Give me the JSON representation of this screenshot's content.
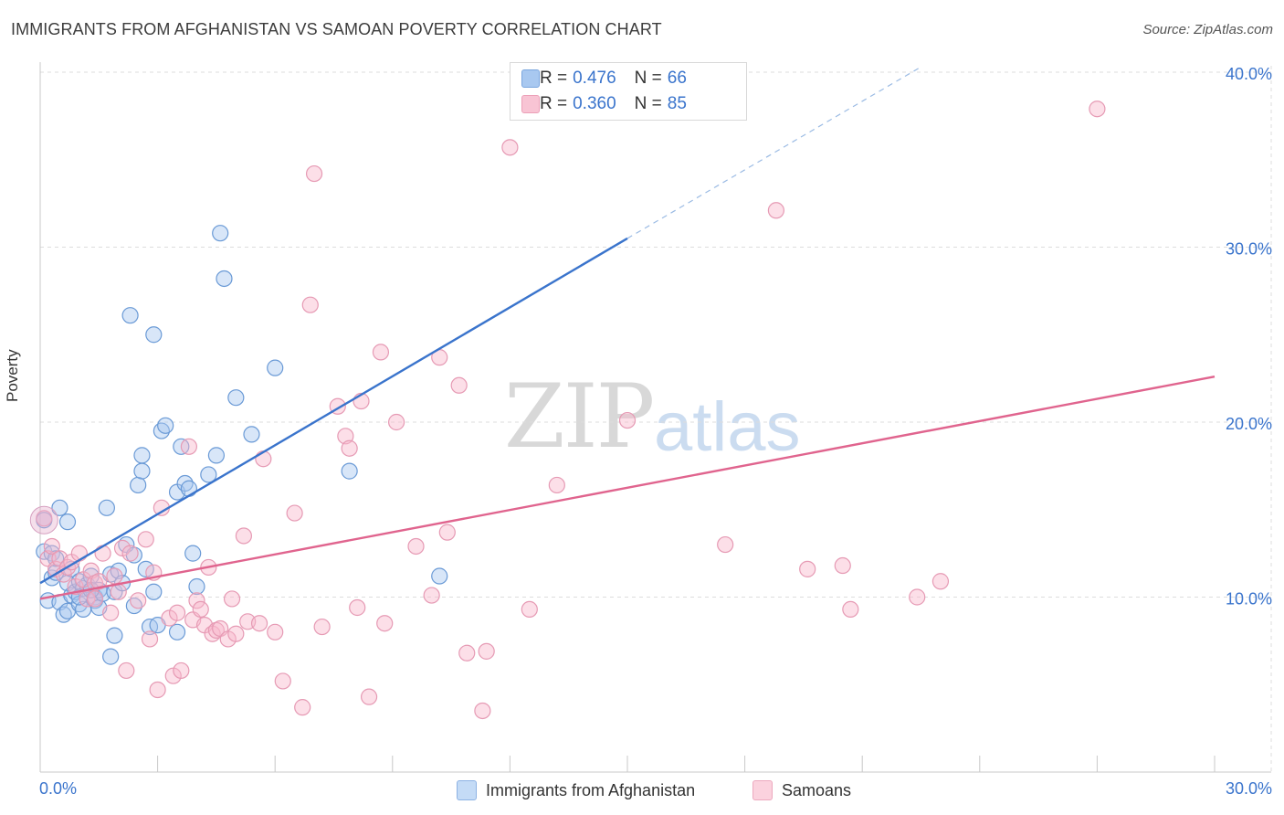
{
  "title": "IMMIGRANTS FROM AFGHANISTAN VS SAMOAN POVERTY CORRELATION CHART",
  "source": "Source: ZipAtlas.com",
  "watermark": {
    "zip": "ZIP",
    "atlas": "atlas"
  },
  "legend": {
    "rows": [
      {
        "r_label": "R = ",
        "r_value": "0.476",
        "n_label": "N = ",
        "n_value": "66",
        "color": "#a8c8f0"
      },
      {
        "r_label": "R = ",
        "r_value": "0.360",
        "n_label": "N = ",
        "n_value": "85",
        "color": "#f8b8cc"
      }
    ]
  },
  "bottom_legend": [
    {
      "label": "Immigrants from Afghanistan",
      "color": "#a8c8f0"
    },
    {
      "label": "Samoans",
      "color": "#f8b8cc"
    }
  ],
  "chart_data": {
    "type": "scatter",
    "title": "IMMIGRANTS FROM AFGHANISTAN VS SAMOAN POVERTY CORRELATION CHART",
    "xlabel": "",
    "ylabel": "Poverty",
    "xlim": [
      0,
      30
    ],
    "ylim": [
      0,
      40
    ],
    "x_tick_labels": [
      "0.0%",
      "30.0%"
    ],
    "y_ticks": [
      10,
      20,
      30,
      40
    ],
    "y_tick_labels": [
      "10.0%",
      "20.0%",
      "30.0%",
      "40.0%"
    ],
    "grid": true,
    "series": [
      {
        "name": "Immigrants from Afghanistan",
        "color": "#3a74cc",
        "fill": "#a8c8f0",
        "trend": {
          "x0": 0,
          "y0": 10.8,
          "x1": 15,
          "y1": 30.5,
          "dashed_to_x": 22.5,
          "dashed_to_y": 40.3
        },
        "points": [
          [
            0.1,
            14.4
          ],
          [
            0.1,
            12.6
          ],
          [
            0.2,
            9.8
          ],
          [
            0.3,
            12.5
          ],
          [
            0.3,
            11.1
          ],
          [
            0.4,
            11.4
          ],
          [
            0.4,
            12.2
          ],
          [
            0.5,
            15.1
          ],
          [
            0.5,
            9.7
          ],
          [
            0.6,
            9.0
          ],
          [
            0.7,
            9.2
          ],
          [
            0.7,
            10.8
          ],
          [
            0.7,
            14.3
          ],
          [
            0.8,
            10.1
          ],
          [
            0.8,
            11.6
          ],
          [
            0.9,
            10.3
          ],
          [
            1.0,
            10.9
          ],
          [
            1.0,
            9.6
          ],
          [
            1.1,
            9.3
          ],
          [
            1.1,
            10.5
          ],
          [
            1.2,
            10.7
          ],
          [
            1.3,
            11.2
          ],
          [
            1.4,
            10.0
          ],
          [
            1.4,
            9.8
          ],
          [
            1.5,
            9.4
          ],
          [
            1.5,
            10.4
          ],
          [
            1.6,
            10.2
          ],
          [
            1.7,
            15.1
          ],
          [
            1.8,
            11.3
          ],
          [
            1.8,
            6.6
          ],
          [
            1.9,
            10.3
          ],
          [
            1.9,
            7.8
          ],
          [
            2.0,
            11.5
          ],
          [
            2.1,
            10.8
          ],
          [
            2.2,
            13.0
          ],
          [
            2.3,
            26.1
          ],
          [
            2.4,
            12.4
          ],
          [
            2.5,
            16.4
          ],
          [
            2.6,
            18.1
          ],
          [
            2.6,
            17.2
          ],
          [
            2.7,
            11.6
          ],
          [
            2.8,
            8.3
          ],
          [
            2.9,
            10.3
          ],
          [
            2.9,
            25.0
          ],
          [
            3.1,
            19.5
          ],
          [
            3.2,
            19.8
          ],
          [
            3.5,
            16.0
          ],
          [
            3.5,
            8.0
          ],
          [
            3.6,
            18.6
          ],
          [
            3.7,
            16.5
          ],
          [
            3.8,
            16.2
          ],
          [
            3.9,
            12.5
          ],
          [
            4.0,
            10.6
          ],
          [
            4.3,
            17.0
          ],
          [
            4.5,
            18.1
          ],
          [
            4.6,
            30.8
          ],
          [
            4.7,
            28.2
          ],
          [
            5.0,
            21.4
          ],
          [
            5.4,
            19.3
          ],
          [
            6.0,
            23.1
          ],
          [
            7.9,
            17.2
          ],
          [
            10.2,
            11.2
          ],
          [
            1.0,
            10.0
          ],
          [
            2.4,
            9.5
          ],
          [
            3.0,
            8.4
          ],
          [
            1.3,
            10.4
          ]
        ]
      },
      {
        "name": "Samoans",
        "color": "#e0648e",
        "fill": "#f8b8cc",
        "trend": {
          "x0": 0,
          "y0": 9.9,
          "x1": 30,
          "y1": 22.6
        },
        "points": [
          [
            0.1,
            14.5
          ],
          [
            0.2,
            12.2
          ],
          [
            0.3,
            12.9
          ],
          [
            0.4,
            11.6
          ],
          [
            0.5,
            12.2
          ],
          [
            0.6,
            11.3
          ],
          [
            0.7,
            11.7
          ],
          [
            0.8,
            12.0
          ],
          [
            0.9,
            10.6
          ],
          [
            1.0,
            12.5
          ],
          [
            1.1,
            11.0
          ],
          [
            1.2,
            9.9
          ],
          [
            1.3,
            11.5
          ],
          [
            1.4,
            10.8
          ],
          [
            1.5,
            10.9
          ],
          [
            1.6,
            12.5
          ],
          [
            1.8,
            9.1
          ],
          [
            1.9,
            11.2
          ],
          [
            2.0,
            10.3
          ],
          [
            2.1,
            12.8
          ],
          [
            2.2,
            5.8
          ],
          [
            2.3,
            12.5
          ],
          [
            2.5,
            9.8
          ],
          [
            2.7,
            13.3
          ],
          [
            2.8,
            7.6
          ],
          [
            2.9,
            11.4
          ],
          [
            3.0,
            4.7
          ],
          [
            3.1,
            15.1
          ],
          [
            3.3,
            8.8
          ],
          [
            3.4,
            5.5
          ],
          [
            3.5,
            9.1
          ],
          [
            3.6,
            5.8
          ],
          [
            3.8,
            18.6
          ],
          [
            3.9,
            8.7
          ],
          [
            4.0,
            9.8
          ],
          [
            4.1,
            9.3
          ],
          [
            4.2,
            8.4
          ],
          [
            4.3,
            11.7
          ],
          [
            4.4,
            7.9
          ],
          [
            4.5,
            8.1
          ],
          [
            4.6,
            8.2
          ],
          [
            4.8,
            7.6
          ],
          [
            4.9,
            9.9
          ],
          [
            5.0,
            7.9
          ],
          [
            5.2,
            13.5
          ],
          [
            5.3,
            8.6
          ],
          [
            5.6,
            8.5
          ],
          [
            5.7,
            17.9
          ],
          [
            6.0,
            8.0
          ],
          [
            6.2,
            5.2
          ],
          [
            6.5,
            14.8
          ],
          [
            6.7,
            3.7
          ],
          [
            6.9,
            26.7
          ],
          [
            7.0,
            34.2
          ],
          [
            7.2,
            8.3
          ],
          [
            7.6,
            20.9
          ],
          [
            7.8,
            19.2
          ],
          [
            7.9,
            18.5
          ],
          [
            8.1,
            9.4
          ],
          [
            8.2,
            21.2
          ],
          [
            8.4,
            4.3
          ],
          [
            8.7,
            24.0
          ],
          [
            8.8,
            8.5
          ],
          [
            9.1,
            20.0
          ],
          [
            9.6,
            12.9
          ],
          [
            10.0,
            10.1
          ],
          [
            10.2,
            23.7
          ],
          [
            10.4,
            13.7
          ],
          [
            10.7,
            22.1
          ],
          [
            10.9,
            6.8
          ],
          [
            11.3,
            3.5
          ],
          [
            11.4,
            6.9
          ],
          [
            12.0,
            35.7
          ],
          [
            12.5,
            9.3
          ],
          [
            13.2,
            16.4
          ],
          [
            15.0,
            20.1
          ],
          [
            17.5,
            13.0
          ],
          [
            18.8,
            32.1
          ],
          [
            19.6,
            11.6
          ],
          [
            20.5,
            11.8
          ],
          [
            20.7,
            9.3
          ],
          [
            22.4,
            10.0
          ],
          [
            23.0,
            10.9
          ],
          [
            27.0,
            37.9
          ],
          [
            1.4,
            9.9
          ]
        ]
      }
    ]
  }
}
